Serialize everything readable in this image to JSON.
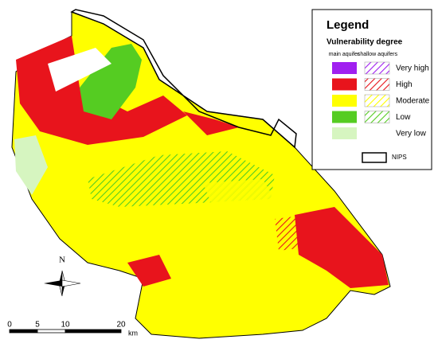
{
  "legend": {
    "title": "Legend",
    "subtitle": "Vulnerability degree",
    "column_main": "main aquifer",
    "column_shallow": "shallow aquifers",
    "items": [
      {
        "label": "Very high",
        "color": "#a020f0",
        "shallow": true
      },
      {
        "label": "High",
        "color": "#e8141c",
        "shallow": true
      },
      {
        "label": "Moderate",
        "color": "#ffff00",
        "shallow": true
      },
      {
        "label": "Low",
        "color": "#55cc22",
        "shallow": true
      },
      {
        "label": "Very low",
        "color": "#d6f5c0",
        "shallow": false
      }
    ],
    "boundary_label": "NIPS"
  },
  "north_label": "N",
  "scale_bar": {
    "ticks": [
      0,
      5,
      10,
      20
    ],
    "unit": "km"
  }
}
